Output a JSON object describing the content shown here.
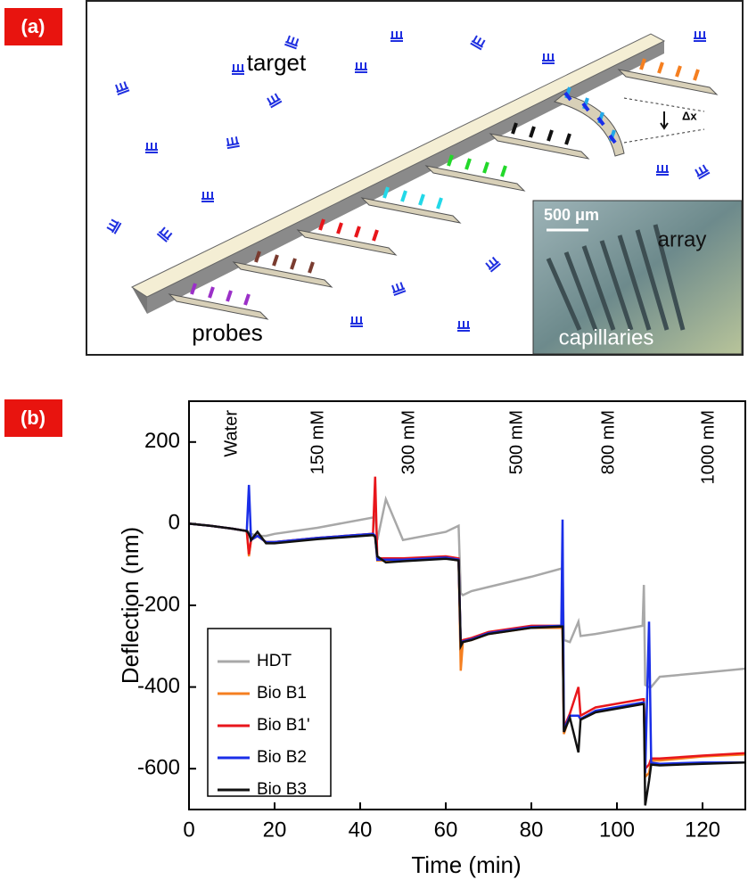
{
  "panel_a": {
    "label": "(a)",
    "target": "target",
    "probes": "probes",
    "dx": "Δx",
    "inset": {
      "scale": "500 μm",
      "array": "array",
      "capillaries": "capillaries"
    }
  },
  "panel_b": {
    "label": "(b)"
  },
  "chart_data": {
    "type": "line",
    "x_label": "Time (min)",
    "y_label": "Deflection (nm)",
    "annotations": [
      "Water",
      "150 mM",
      "300 mM",
      "500 mM",
      "800 mM",
      "1000 mM"
    ],
    "x": [
      0,
      5,
      10,
      13.5,
      14,
      14.5,
      16,
      18,
      20,
      30,
      43,
      43.5,
      44,
      46,
      50,
      60,
      63,
      63.5,
      64,
      66,
      70,
      80,
      87,
      87.3,
      87.6,
      89,
      91,
      91.5,
      95,
      106,
      106.3,
      106.6,
      107.5,
      108,
      110,
      120,
      130
    ],
    "series": [
      {
        "name": "HDT",
        "color": "#a8a8a8",
        "values": [
          0,
          -5,
          -12,
          -18,
          -20,
          -25,
          -30,
          -30,
          -25,
          -10,
          15,
          20,
          -40,
          60,
          -40,
          -20,
          -5,
          -170,
          -175,
          -165,
          -155,
          -130,
          -110,
          -110,
          -285,
          -290,
          -240,
          -275,
          -270,
          -250,
          -150,
          -395,
          -400,
          -400,
          -375,
          -365,
          -355
        ]
      },
      {
        "name": "Bio B1",
        "color": "#f57f20",
        "values": [
          0,
          -5,
          -12,
          -18,
          -80,
          -40,
          -30,
          -45,
          -45,
          -35,
          -25,
          -30,
          -90,
          -90,
          -90,
          -85,
          -90,
          -360,
          -290,
          -285,
          -270,
          -255,
          -255,
          -255,
          -515,
          -470,
          -470,
          -480,
          -460,
          -440,
          -440,
          -620,
          -610,
          -580,
          -580,
          -570,
          -565
        ]
      },
      {
        "name": "Bio B1'",
        "color": "#e8161b",
        "values": [
          0,
          -5,
          -12,
          -18,
          -75,
          -40,
          -30,
          -45,
          -45,
          -35,
          -25,
          115,
          -85,
          -85,
          -85,
          -80,
          -85,
          -300,
          -285,
          -280,
          -265,
          -250,
          -250,
          -250,
          -500,
          -465,
          -400,
          -470,
          -450,
          -430,
          -430,
          -600,
          -590,
          -575,
          -575,
          -568,
          -562
        ]
      },
      {
        "name": "Bio B2",
        "color": "#1a2ee8",
        "values": [
          0,
          -5,
          -12,
          -18,
          95,
          -40,
          -30,
          -45,
          -45,
          -35,
          -25,
          -30,
          -88,
          -88,
          -88,
          -83,
          -88,
          -295,
          -288,
          -283,
          -268,
          -253,
          -250,
          10,
          -505,
          -470,
          -470,
          -478,
          -458,
          -438,
          -438,
          -610,
          -240,
          -585,
          -588,
          -585,
          -585
        ]
      },
      {
        "name": "Bio B3",
        "color": "#111111",
        "values": [
          0,
          -5,
          -12,
          -18,
          -25,
          -40,
          -20,
          -48,
          -48,
          -38,
          -28,
          -32,
          -80,
          -95,
          -92,
          -86,
          -90,
          -300,
          -290,
          -285,
          -270,
          -255,
          -252,
          -252,
          -510,
          -475,
          -560,
          -480,
          -462,
          -442,
          -442,
          -690,
          -630,
          -590,
          -592,
          -588,
          -585
        ]
      }
    ],
    "xlim": [
      0,
      130
    ],
    "xticks": [
      0,
      20,
      40,
      60,
      80,
      100,
      120
    ],
    "ylim": [
      -700,
      300
    ],
    "yticks": [
      -600,
      -400,
      -200,
      0,
      200
    ]
  }
}
